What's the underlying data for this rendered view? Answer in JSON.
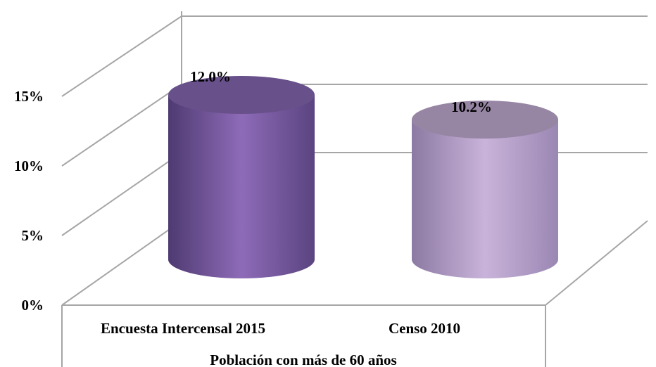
{
  "chart_data": {
    "type": "bar",
    "style": "3d-cylinder",
    "categories": [
      "Encuesta Intercensal 2015",
      "Censo 2010"
    ],
    "values": [
      12.0,
      10.2
    ],
    "value_labels": [
      "12.0%",
      "10.2%"
    ],
    "bar_colors": [
      "#7f62a8",
      "#b8a2c8"
    ],
    "xlabel": "Población con más de 60 años",
    "ylabel": "",
    "ylim": [
      0,
      15
    ],
    "yticks": [
      0,
      5,
      10,
      15
    ],
    "ytick_labels": [
      "0%",
      "5%",
      "10%",
      "15%"
    ],
    "grid": true,
    "legend": false
  }
}
